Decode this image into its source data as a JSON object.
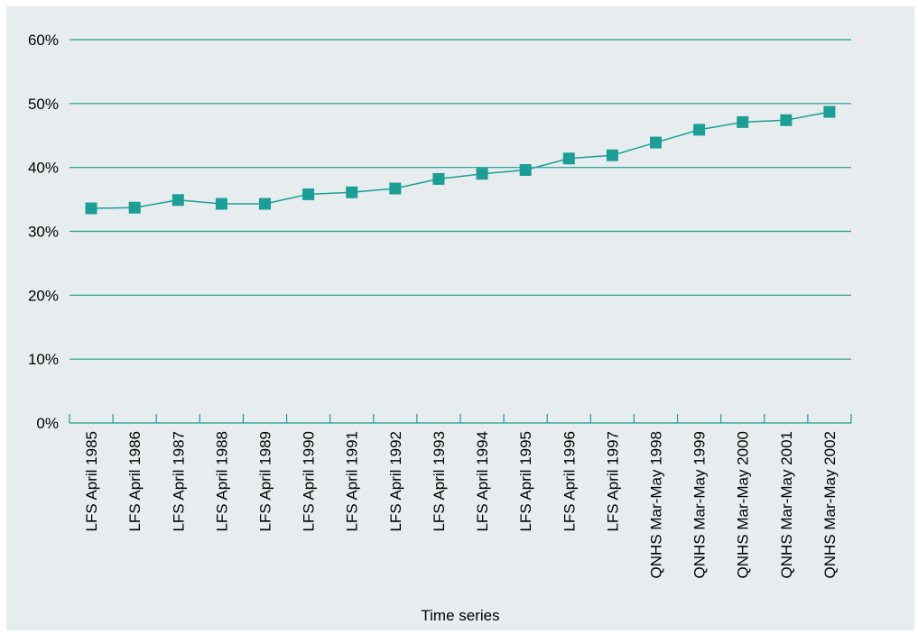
{
  "chart_data": {
    "type": "line",
    "title": "",
    "xlabel": "Time series",
    "ylabel": "",
    "ylim": [
      0,
      60
    ],
    "yticks": [
      0,
      10,
      20,
      30,
      40,
      50,
      60
    ],
    "ytick_labels": [
      "0%",
      "10%",
      "20%",
      "30%",
      "40%",
      "50%",
      "60%"
    ],
    "grid": true,
    "legend": "none",
    "colors": {
      "series": "#1a9e95",
      "grid": "#1a9e95",
      "axis": "#1a9e95",
      "background": "#e7ecee"
    },
    "categories": [
      "LFS April 1985",
      "LFS April 1986",
      "LFS April 1987",
      "LFS April 1988",
      "LFS April 1989",
      "LFS April 1990",
      "LFS April 1991",
      "LFS April 1992",
      "LFS April 1993",
      "LFS April 1994",
      "LFS April 1995",
      "LFS April 1996",
      "LFS April 1997",
      "QNHS Mar-May 1998",
      "QNHS Mar-May 1999",
      "QNHS Mar-May 2000",
      "QNHS Mar-May 2001",
      "QNHS Mar-May 2002"
    ],
    "series": [
      {
        "marker": "square",
        "values": [
          33.6,
          33.7,
          34.9,
          34.3,
          34.3,
          35.8,
          36.1,
          36.7,
          38.2,
          39.0,
          39.6,
          41.4,
          41.9,
          43.9,
          45.9,
          47.1,
          47.4,
          48.7
        ]
      }
    ]
  }
}
